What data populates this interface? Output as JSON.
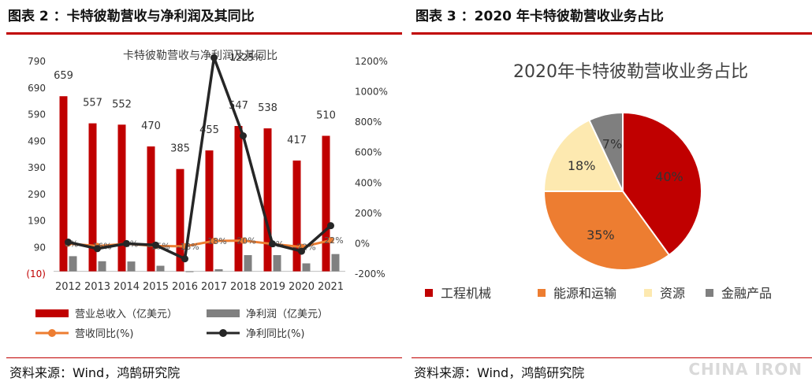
{
  "left_panel": {
    "figure_title": "图表 2 ：卡特彼勒营收与净利润及其同比",
    "source": "资料来源：Wind，鸿鹄研究院"
  },
  "right_panel": {
    "figure_title": "图表 3 ：2020 年卡特彼勒营收业务占比",
    "source": "资料来源：Wind，鸿鹄研究院"
  },
  "watermark": "CHINA IRON",
  "chart_data": [
    {
      "type": "bar",
      "title": "卡特彼勒营收与净利润及其同比",
      "categories": [
        "2012",
        "2013",
        "2014",
        "2015",
        "2016",
        "2017",
        "2018",
        "2019",
        "2020",
        "2021"
      ],
      "series": [
        {
          "name": "营业总收入（亿美元）",
          "kind": "bar",
          "axis": "left",
          "color": "#c00000",
          "values": [
            659,
            557,
            552,
            470,
            385,
            455,
            547,
            538,
            417,
            510
          ]
        },
        {
          "name": "净利润（亿美元）",
          "kind": "bar",
          "axis": "left",
          "color": "#808080",
          "values": [
            57,
            38,
            37,
            21,
            -1,
            8,
            61,
            61,
            30,
            65
          ]
        },
        {
          "name": "营收同比(%)",
          "kind": "line",
          "axis": "right",
          "color": "#ed7d31",
          "values": [
            0,
            -16,
            -1,
            -15,
            -18,
            18,
            20,
            -2,
            -22,
            22
          ],
          "labels": [
            "0%",
            "-16%",
            "-1%",
            "-15%",
            "-18%",
            "18%",
            "20%",
            "-2%",
            "-22%",
            "22%"
          ]
        },
        {
          "name": "净利同比(%)",
          "kind": "line",
          "axis": "right",
          "color": "#262626",
          "values": [
            10,
            -33,
            0,
            -10,
            -100,
            1225,
            710,
            -1,
            -50,
            118
          ]
        }
      ],
      "bar_labels": [
        "659",
        "557",
        "552",
        "470",
        "385",
        "455",
        "547",
        "538",
        "417",
        "510"
      ],
      "line_labels": {
        "index": 5,
        "text": "1225%"
      },
      "left_axis": {
        "ylim": [
          -10,
          790
        ],
        "ticks": [
          "790",
          "690",
          "590",
          "490",
          "390",
          "290",
          "190",
          "90",
          "(10)"
        ]
      },
      "right_axis": {
        "ylim": [
          -200,
          1200
        ],
        "ticks": [
          "1200%",
          "1000%",
          "800%",
          "600%",
          "400%",
          "200%",
          "0%",
          "-200%"
        ]
      },
      "legend_placement": "bottom"
    },
    {
      "type": "pie",
      "title": "2020年卡特彼勒营收业务占比",
      "slices": [
        {
          "name": "工程机械",
          "value": 40,
          "label": "40%",
          "color": "#c00000"
        },
        {
          "name": "能源和运输",
          "value": 35,
          "label": "35%",
          "color": "#ed7d31"
        },
        {
          "name": "资源",
          "value": 18,
          "label": "18%",
          "color": "#fde9b0"
        },
        {
          "name": "金融产品",
          "value": 7,
          "label": "7%",
          "color": "#7f7f7f"
        }
      ],
      "legend_placement": "bottom"
    }
  ]
}
